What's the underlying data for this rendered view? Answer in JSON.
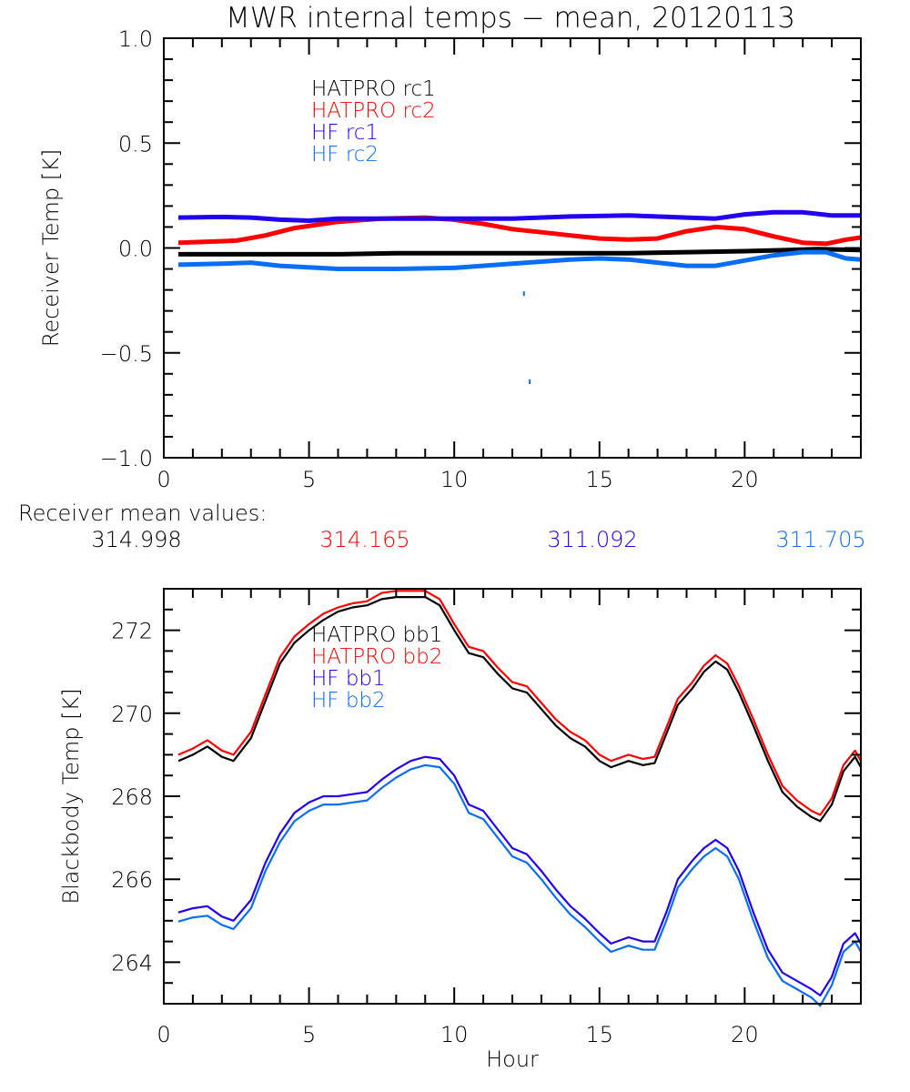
{
  "title": "MWR internal temps − mean, 20120113",
  "colors": {
    "hatpro1": "#000000",
    "hatpro2": "#ff0000",
    "hf1": "#2200ee",
    "hf2": "#0a6ef5"
  },
  "receiver_means": {
    "label": "Receiver mean values:",
    "values": [
      "314.998",
      "314.165",
      "311.092",
      "311.705"
    ]
  },
  "chart_data": [
    {
      "type": "line",
      "title": "MWR internal temps − mean, 20120113",
      "xlabel": "",
      "ylabel": "Receiver Temp [K]",
      "xlim": [
        0,
        24
      ],
      "ylim": [
        -1.0,
        1.0
      ],
      "xticks": [
        0,
        5,
        10,
        15,
        20
      ],
      "xtick_labels": [
        "0",
        "5",
        "10",
        "15",
        "20"
      ],
      "yticks": [
        1.0,
        0.5,
        0.0,
        -0.5,
        -1.0
      ],
      "ytick_labels": [
        "1.0",
        "0.5",
        "0.0",
        "−0.5",
        "−1.0"
      ],
      "legend_position": "top-left-center",
      "grid": false,
      "series": [
        {
          "name": "HATPRO rc1",
          "color_key": "hatpro1",
          "x": [
            0.5,
            2,
            4,
            6,
            8,
            10,
            12,
            14,
            16,
            18,
            20,
            21.5,
            22.5,
            24
          ],
          "y": [
            -0.03,
            -0.03,
            -0.03,
            -0.03,
            -0.025,
            -0.025,
            -0.025,
            -0.025,
            -0.025,
            -0.02,
            -0.015,
            -0.01,
            -0.005,
            -0.01
          ]
        },
        {
          "name": "HATPRO rc2",
          "color_key": "hatpro2",
          "x": [
            0.5,
            1.5,
            2.5,
            3.5,
            4.5,
            6,
            7.5,
            9,
            10,
            11,
            12,
            13,
            14,
            15,
            16,
            17,
            18,
            19,
            20,
            21,
            22,
            22.8,
            23.5,
            24
          ],
          "y": [
            0.025,
            0.03,
            0.035,
            0.06,
            0.095,
            0.125,
            0.14,
            0.145,
            0.135,
            0.115,
            0.09,
            0.075,
            0.06,
            0.045,
            0.04,
            0.045,
            0.08,
            0.1,
            0.09,
            0.055,
            0.025,
            0.02,
            0.04,
            0.05
          ]
        },
        {
          "name": "HF rc1",
          "color_key": "hf1",
          "x": [
            0.5,
            2,
            3,
            4,
            5,
            6,
            8,
            10,
            12,
            14,
            16,
            18,
            19,
            20,
            21,
            22,
            23,
            24
          ],
          "y": [
            0.145,
            0.148,
            0.145,
            0.135,
            0.13,
            0.14,
            0.14,
            0.14,
            0.14,
            0.15,
            0.155,
            0.145,
            0.14,
            0.16,
            0.17,
            0.17,
            0.155,
            0.155
          ]
        },
        {
          "name": "HF rc2",
          "color_key": "hf2",
          "x": [
            0.5,
            2,
            3,
            4,
            6,
            8,
            10,
            12,
            14,
            15,
            16,
            17,
            18,
            19,
            20,
            21,
            22,
            22.8,
            23.5,
            24
          ],
          "y": [
            -0.08,
            -0.075,
            -0.07,
            -0.085,
            -0.1,
            -0.1,
            -0.095,
            -0.075,
            -0.055,
            -0.05,
            -0.055,
            -0.07,
            -0.085,
            -0.085,
            -0.06,
            -0.035,
            -0.02,
            -0.02,
            -0.05,
            -0.055
          ]
        }
      ],
      "outliers": [
        {
          "series": "HF rc2",
          "x": 12.4,
          "y": -0.22
        },
        {
          "series": "HF rc2",
          "x": 12.6,
          "y": -0.64
        }
      ]
    },
    {
      "type": "line",
      "title": "",
      "xlabel": "Hour",
      "ylabel": "Blackbody Temp [K]",
      "xlim": [
        0,
        24
      ],
      "ylim": [
        263,
        273
      ],
      "xticks": [
        0,
        5,
        10,
        15,
        20
      ],
      "xtick_labels": [
        "0",
        "5",
        "10",
        "15",
        "20"
      ],
      "yticks": [
        264,
        266,
        268,
        270,
        272
      ],
      "ytick_labels": [
        "264",
        "266",
        "268",
        "270",
        "272"
      ],
      "legend_position": "top-left-center",
      "grid": false,
      "series": [
        {
          "name": "HATPRO bb1",
          "color_key": "hatpro1",
          "x": [
            0.5,
            1.0,
            1.5,
            2.0,
            2.4,
            3.0,
            3.5,
            4.0,
            4.5,
            5.0,
            5.5,
            6.0,
            6.5,
            7.0,
            7.5,
            8.0,
            8.5,
            9.0,
            9.5,
            10.0,
            10.5,
            11.0,
            11.5,
            12.0,
            12.5,
            13.0,
            13.5,
            14.0,
            14.5,
            15.0,
            15.4,
            16.0,
            16.5,
            16.9,
            17.3,
            17.7,
            18.2,
            18.6,
            19.0,
            19.4,
            19.8,
            20.3,
            20.8,
            21.3,
            21.8,
            22.3,
            22.6,
            23.0,
            23.4,
            23.8,
            24.0
          ],
          "y": [
            268.85,
            269.0,
            269.2,
            268.95,
            268.85,
            269.4,
            270.3,
            271.2,
            271.7,
            272.0,
            272.25,
            272.45,
            272.55,
            272.6,
            272.75,
            272.8,
            272.8,
            272.8,
            272.6,
            272.0,
            271.45,
            271.35,
            270.95,
            270.6,
            270.5,
            270.1,
            269.7,
            269.4,
            269.2,
            268.85,
            268.7,
            268.85,
            268.75,
            268.8,
            269.5,
            270.2,
            270.6,
            271.0,
            271.25,
            271.05,
            270.5,
            269.7,
            268.85,
            268.1,
            267.75,
            267.5,
            267.4,
            267.8,
            268.6,
            268.95,
            268.7
          ]
        },
        {
          "name": "HATPRO bb2",
          "color_key": "hatpro2",
          "x": [
            0.5,
            1.0,
            1.5,
            2.0,
            2.4,
            3.0,
            3.5,
            4.0,
            4.5,
            5.0,
            5.5,
            6.0,
            6.5,
            7.0,
            7.5,
            8.0,
            8.5,
            9.0,
            9.5,
            10.0,
            10.5,
            11.0,
            11.5,
            12.0,
            12.5,
            13.0,
            13.5,
            14.0,
            14.5,
            15.0,
            15.4,
            16.0,
            16.5,
            16.9,
            17.3,
            17.7,
            18.2,
            18.6,
            19.0,
            19.4,
            19.8,
            20.3,
            20.8,
            21.3,
            21.8,
            22.3,
            22.6,
            23.0,
            23.4,
            23.8,
            24.0
          ],
          "y": [
            269.0,
            269.15,
            269.35,
            269.1,
            269.0,
            269.55,
            270.45,
            271.35,
            271.85,
            272.15,
            272.4,
            272.55,
            272.65,
            272.7,
            272.9,
            272.95,
            272.95,
            272.95,
            272.75,
            272.15,
            271.6,
            271.5,
            271.1,
            270.75,
            270.65,
            270.25,
            269.85,
            269.55,
            269.35,
            269.0,
            268.85,
            269.0,
            268.9,
            268.95,
            269.65,
            270.35,
            270.75,
            271.15,
            271.4,
            271.2,
            270.65,
            269.85,
            269.0,
            268.25,
            267.9,
            267.65,
            267.55,
            267.95,
            268.75,
            269.1,
            268.85
          ]
        },
        {
          "name": "HF bb1",
          "color_key": "hf1",
          "x": [
            0.5,
            1.0,
            1.5,
            2.0,
            2.4,
            3.0,
            3.5,
            4.0,
            4.5,
            5.0,
            5.5,
            6.0,
            6.5,
            7.0,
            7.5,
            8.0,
            8.5,
            9.0,
            9.5,
            10.0,
            10.5,
            11.0,
            11.5,
            12.0,
            12.5,
            13.0,
            13.5,
            14.0,
            14.5,
            15.0,
            15.4,
            16.0,
            16.5,
            16.9,
            17.3,
            17.7,
            18.2,
            18.6,
            19.0,
            19.4,
            19.8,
            20.3,
            20.8,
            21.3,
            21.8,
            22.3,
            22.6,
            23.0,
            23.4,
            23.8,
            24.0
          ],
          "y": [
            265.2,
            265.3,
            265.35,
            265.1,
            265.0,
            265.5,
            266.4,
            267.1,
            267.6,
            267.85,
            268.0,
            268.0,
            268.05,
            268.1,
            268.4,
            268.65,
            268.85,
            268.95,
            268.9,
            268.5,
            267.8,
            267.65,
            267.2,
            266.75,
            266.6,
            266.2,
            265.75,
            265.35,
            265.05,
            264.7,
            264.45,
            264.6,
            264.5,
            264.5,
            265.2,
            266.0,
            266.45,
            266.75,
            266.95,
            266.75,
            266.2,
            265.2,
            264.3,
            263.75,
            263.55,
            263.35,
            263.2,
            263.65,
            264.45,
            264.7,
            264.45
          ]
        },
        {
          "name": "HF bb2",
          "color_key": "hf2",
          "x": [
            0.5,
            1.0,
            1.5,
            2.0,
            2.4,
            3.0,
            3.5,
            4.0,
            4.5,
            5.0,
            5.5,
            6.0,
            6.5,
            7.0,
            7.5,
            8.0,
            8.5,
            9.0,
            9.5,
            10.0,
            10.5,
            11.0,
            11.5,
            12.0,
            12.5,
            13.0,
            13.5,
            14.0,
            14.5,
            15.0,
            15.4,
            16.0,
            16.5,
            16.9,
            17.3,
            17.7,
            18.2,
            18.6,
            19.0,
            19.4,
            19.8,
            20.3,
            20.8,
            21.3,
            21.8,
            22.3,
            22.6,
            23.0,
            23.4,
            23.8,
            24.0
          ],
          "y": [
            264.98,
            265.08,
            265.12,
            264.9,
            264.8,
            265.3,
            266.2,
            266.9,
            267.4,
            267.65,
            267.8,
            267.8,
            267.85,
            267.9,
            268.2,
            268.45,
            268.65,
            268.75,
            268.7,
            268.3,
            267.6,
            267.45,
            267.0,
            266.55,
            266.4,
            266.0,
            265.55,
            265.15,
            264.85,
            264.5,
            264.25,
            264.4,
            264.3,
            264.3,
            265.0,
            265.8,
            266.25,
            266.55,
            266.75,
            266.55,
            266.0,
            265.0,
            264.1,
            263.55,
            263.35,
            263.15,
            262.95,
            263.45,
            264.25,
            264.5,
            264.25
          ]
        }
      ]
    }
  ]
}
